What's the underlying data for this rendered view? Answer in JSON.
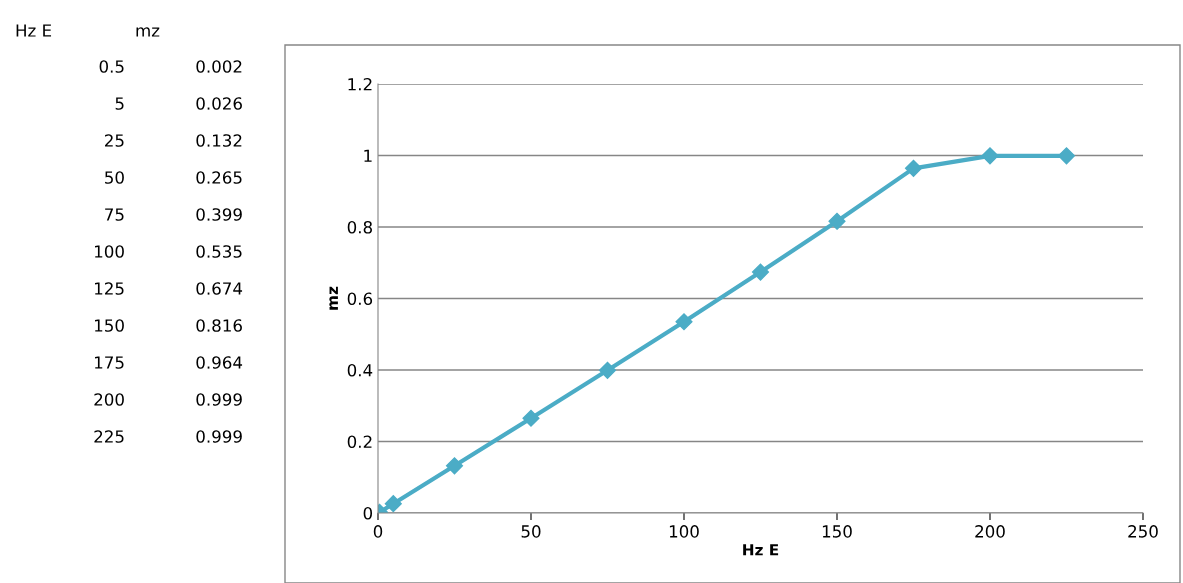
{
  "chart_data": {
    "type": "line",
    "xlabel": "Hz E",
    "ylabel": "mz",
    "x": [
      0.5,
      5,
      25,
      50,
      75,
      100,
      125,
      150,
      175,
      200,
      225
    ],
    "series": [
      {
        "color": "#4bacc6",
        "values": [
          0.002,
          0.026,
          0.132,
          0.265,
          0.399,
          0.535,
          0.674,
          0.816,
          0.964,
          0.999,
          0.999
        ]
      }
    ],
    "xlim": [
      0,
      250
    ],
    "xticks": [
      0,
      50,
      100,
      150,
      200,
      250
    ],
    "ylim": [
      0,
      1.2
    ],
    "yticks": [
      0,
      0.2,
      0.4,
      0.6,
      0.8,
      1,
      1.2
    ],
    "grid": "y",
    "marker": "diamond",
    "line_style": "solid",
    "annotations": [
      "Hz E",
      "mz",
      "0.5",
      "0.002",
      "5",
      "0.026",
      "25",
      "0.132",
      "50",
      "0.265",
      "75",
      "0.399",
      "100",
      "0.535",
      "125",
      "0.674",
      "150",
      "0.816",
      "175",
      "0.964",
      "200",
      "0.999",
      "225",
      "0.999"
    ]
  }
}
